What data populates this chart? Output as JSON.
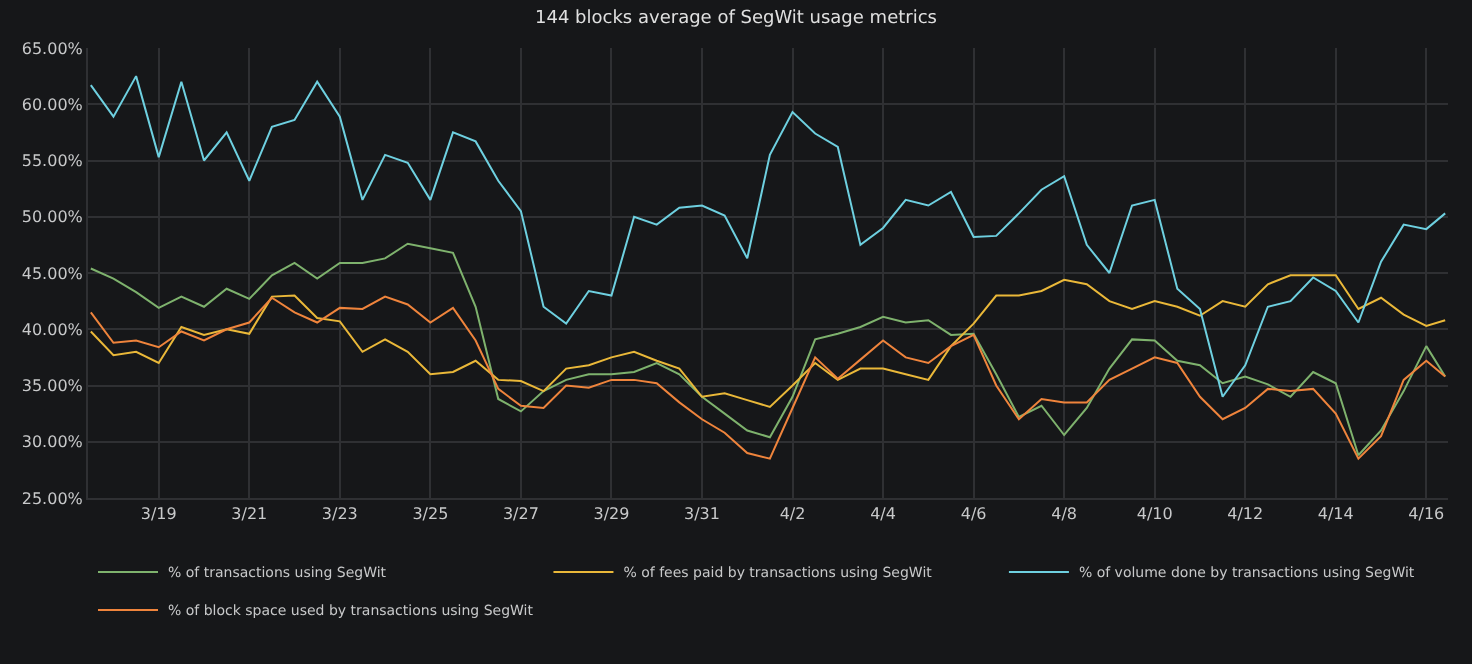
{
  "chart_data": {
    "type": "line",
    "title": "144 blocks average of SegWit usage metrics",
    "x": [
      "--03-17T12:00",
      "--03-18T00:00",
      "--03-18T12:00",
      "--03-19T00:00",
      "--03-19T12:00",
      "--03-20T00:00",
      "--03-20T12:00",
      "--03-21T00:00",
      "--03-21T12:00",
      "--03-22T00:00",
      "--03-22T12:00",
      "--03-23T00:00",
      "--03-23T12:00",
      "--03-24T00:00",
      "--03-24T12:00",
      "--03-25T00:00",
      "--03-25T12:00",
      "--03-26T00:00",
      "--03-26T12:00",
      "--03-27T00:00",
      "--03-27T12:00",
      "--03-28T00:00",
      "--03-28T12:00",
      "--03-29T00:00",
      "--03-29T12:00",
      "--03-30T00:00",
      "--03-30T12:00",
      "--03-31T00:00",
      "--03-31T12:00",
      "--04-01T00:00",
      "--04-01T12:00",
      "--04-02T00:00",
      "--04-02T12:00",
      "--04-03T00:00",
      "--04-03T12:00",
      "--04-04T00:00",
      "--04-04T12:00",
      "--04-05T00:00",
      "--04-05T12:00",
      "--04-06T00:00",
      "--04-06T12:00",
      "--04-07T00:00",
      "--04-07T12:00",
      "--04-08T00:00",
      "--04-08T12:00",
      "--04-09T00:00",
      "--04-09T12:00",
      "--04-10T00:00",
      "--04-10T12:00",
      "--04-11T00:00",
      "--04-11T12:00",
      "--04-12T00:00",
      "--04-12T12:00",
      "--04-13T00:00",
      "--04-13T12:00",
      "--04-14T00:00",
      "--04-14T12:00",
      "--04-15T00:00",
      "--04-15T12:00",
      "--04-16T00:00",
      "--04-16T10:00"
    ],
    "series": [
      {
        "name": "% of transactions using SegWit",
        "color": "#7eb26d",
        "values": [
          45.4,
          44.5,
          43.3,
          41.9,
          42.9,
          42.0,
          43.6,
          42.7,
          44.8,
          45.9,
          44.5,
          45.9,
          45.9,
          46.3,
          47.6,
          47.2,
          46.8,
          42.0,
          33.8,
          32.7,
          34.5,
          35.5,
          36.0,
          36.0,
          36.2,
          37.0,
          36.0,
          34.0,
          32.5,
          31.0,
          30.4,
          34.0,
          39.1,
          39.6,
          40.2,
          41.1,
          40.6,
          40.8,
          39.5,
          39.6,
          36.0,
          32.2,
          33.2,
          30.6,
          33.0,
          36.5,
          39.1,
          39.0,
          37.2,
          36.8,
          35.2,
          35.8,
          35.1,
          34.0,
          36.2,
          35.2,
          28.8,
          31.0,
          34.5,
          38.5,
          35.8
        ]
      },
      {
        "name": "% of fees paid by transactions using SegWit",
        "color": "#eab839",
        "values": [
          39.8,
          37.7,
          38.0,
          37.0,
          40.2,
          39.5,
          40.0,
          39.6,
          42.9,
          43.0,
          41.0,
          40.7,
          38.0,
          39.1,
          38.0,
          36.0,
          36.2,
          37.2,
          35.5,
          35.4,
          34.5,
          36.5,
          36.8,
          37.5,
          38.0,
          37.2,
          36.5,
          34.0,
          34.3,
          33.7,
          33.1,
          35.0,
          37.0,
          35.5,
          36.5,
          36.5,
          36.0,
          35.5,
          38.5,
          40.5,
          43.0,
          43.0,
          43.4,
          44.4,
          44.0,
          42.5,
          41.8,
          42.5,
          42.0,
          41.2,
          42.5,
          42.0,
          44.0,
          44.8,
          44.8,
          44.8,
          41.8,
          42.8,
          41.3,
          40.3,
          40.8
        ]
      },
      {
        "name": "% of volume done by transactions using SegWit",
        "color": "#6ed0e0",
        "values": [
          61.7,
          58.9,
          62.5,
          55.3,
          62.0,
          55.0,
          57.5,
          53.2,
          58.0,
          58.6,
          62.0,
          58.9,
          51.5,
          55.5,
          54.8,
          51.5,
          57.5,
          56.7,
          53.2,
          50.5,
          42.0,
          40.5,
          43.4,
          43.0,
          50.0,
          49.3,
          50.8,
          51.0,
          50.1,
          46.3,
          55.5,
          59.3,
          57.4,
          56.2,
          47.5,
          49.0,
          51.5,
          51.0,
          52.2,
          48.2,
          48.3,
          50.3,
          52.4,
          53.6,
          47.5,
          45.0,
          51.0,
          51.5,
          43.6,
          41.8,
          34.0,
          36.8,
          42.0,
          42.5,
          44.6,
          43.4,
          40.6,
          46.0,
          49.3,
          48.9,
          50.3
        ]
      },
      {
        "name": "% of block space used by transactions using SegWit",
        "color": "#ef843c",
        "values": [
          41.5,
          38.8,
          39.0,
          38.4,
          39.8,
          39.0,
          40.0,
          40.6,
          42.8,
          41.5,
          40.6,
          41.9,
          41.8,
          42.9,
          42.2,
          40.6,
          41.9,
          39.0,
          34.7,
          33.2,
          33.0,
          35.0,
          34.8,
          35.5,
          35.5,
          35.2,
          33.5,
          32.0,
          30.8,
          29.0,
          28.5,
          33.0,
          37.5,
          35.6,
          37.3,
          39.0,
          37.5,
          37.0,
          38.5,
          39.5,
          35.0,
          32.0,
          33.8,
          33.5,
          33.5,
          35.5,
          36.5,
          37.5,
          37.0,
          34.0,
          32.0,
          33.0,
          34.7,
          34.5,
          34.7,
          32.5,
          28.5,
          30.5,
          35.5,
          37.2,
          35.8
        ]
      }
    ],
    "xlim": [
      "--03-17T10:30",
      "--04-16T11:30"
    ],
    "xticks": [
      {
        "value": "--03-19",
        "label": "3/19"
      },
      {
        "value": "--03-21",
        "label": "3/21"
      },
      {
        "value": "--03-23",
        "label": "3/23"
      },
      {
        "value": "--03-25",
        "label": "3/25"
      },
      {
        "value": "--03-27",
        "label": "3/27"
      },
      {
        "value": "--03-29",
        "label": "3/29"
      },
      {
        "value": "--03-31",
        "label": "3/31"
      },
      {
        "value": "--04-02",
        "label": "4/2"
      },
      {
        "value": "--04-04",
        "label": "4/4"
      },
      {
        "value": "--04-06",
        "label": "4/6"
      },
      {
        "value": "--04-08",
        "label": "4/8"
      },
      {
        "value": "--04-10",
        "label": "4/10"
      },
      {
        "value": "--04-12",
        "label": "4/12"
      },
      {
        "value": "--04-14",
        "label": "4/14"
      },
      {
        "value": "--04-16",
        "label": "4/16"
      }
    ],
    "ylim": [
      25,
      65
    ],
    "yticks": [
      {
        "value": 25,
        "label": "25.00%"
      },
      {
        "value": 30,
        "label": "30.00%"
      },
      {
        "value": 35,
        "label": "35.00%"
      },
      {
        "value": 40,
        "label": "40.00%"
      },
      {
        "value": 45,
        "label": "45.00%"
      },
      {
        "value": 50,
        "label": "50.00%"
      },
      {
        "value": 55,
        "label": "55.00%"
      },
      {
        "value": 60,
        "label": "60.00%"
      },
      {
        "value": 65,
        "label": "65.00%"
      }
    ],
    "grid": true,
    "legend": "bottom"
  }
}
